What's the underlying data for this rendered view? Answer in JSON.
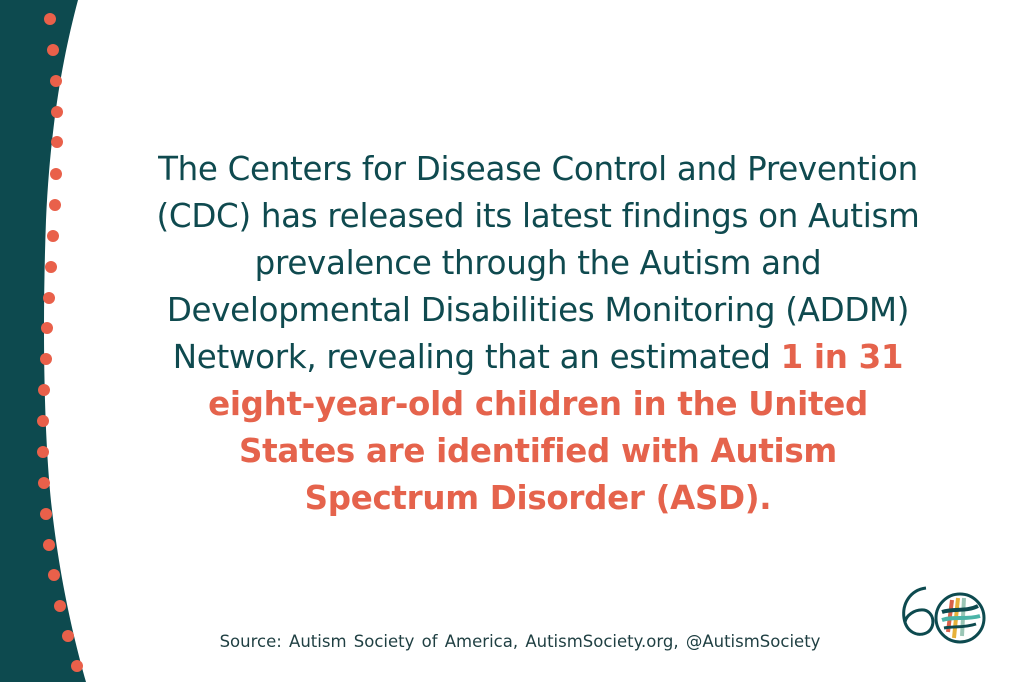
{
  "colors": {
    "teal": "#0d4a4f",
    "coral": "#e9604a",
    "background": "#ffffff"
  },
  "main": {
    "text": "The Centers for Disease Control and Prevention (CDC) has released its latest findings on Autism prevalence through the Autism and Developmental Disabilities Monitoring (ADDM) Network, revealing that an estimated ",
    "highlight": "1 in 31 eight-year-old children in the United States are identified with Autism Spectrum Disorder (ASD)."
  },
  "source": "Source:  Autism Society of America,  AutismSociety.org,  @AutismSociety",
  "logo": {
    "label": "60",
    "icon": "autism-society-60th-anniversary-logo"
  }
}
